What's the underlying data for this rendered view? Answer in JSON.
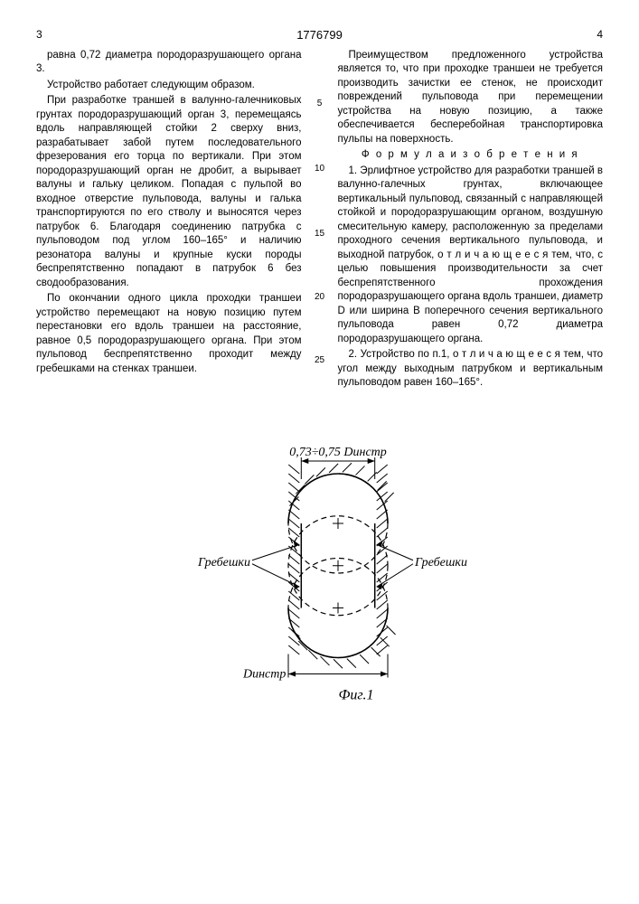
{
  "header": {
    "left_page": "3",
    "patent_number": "1776799",
    "right_page": "4"
  },
  "col_left": {
    "p1": "равна 0,72 диаметра породоразрушающего органа 3.",
    "p2": "Устройство работает следующим образом.",
    "p3": "При разработке траншей в валунно-галечниковых грунтах породоразрушающий орган 3, перемещаясь вдоль направляющей стойки 2 сверху вниз, разрабатывает забой путем последовательного фрезерования его торца по вертикали. При этом породоразрушающий орган не дробит, а вырывает валуны и гальку целиком. Попадая с пульпой во входное отверстие пульповода, валуны и галька транспортируются по его стволу и выносятся через патрубок 6. Благодаря соединению патрубка с пульповодом под углом 160–165° и наличию резонатора валуны и крупные куски породы беспрепятственно попадают в патрубок 6 без сводообразования.",
    "p4": "По окончании одного цикла проходки траншеи устройство перемещают на новую позицию путем перестановки его вдоль траншеи на расстояние, равное 0,5 породоразрушающего органа. При этом пульповод беспрепятственно проходит между гребешками на стенках траншеи."
  },
  "col_right": {
    "p1": "Преимуществом предложенного устройства является то, что при проходке траншеи не требуется производить зачистки ее стенок, не происходит повреждений пульповода при перемещении устройства на новую позицию, а также обеспечивается бесперебойная транспортировка пульпы на поверхность.",
    "heading": "Ф о р м у л а  и з о б р е т е н и я",
    "p2": "1. Эрлифтное устройство для разработки траншей в валунно-галечных грунтах, включающее вертикальный пульповод, связанный с направляющей стойкой и породоразрушающим органом, воздушную смесительную камеру, расположенную за пределами проходного сечения вертикального пульповода, и выходной патрубок, о т л и ч а ю щ е е с я тем, что, с целью повышения производительности за счет беспрепятственного прохождения породоразрушающего органа вдоль траншеи, диаметр D или ширина B поперечного сечения вертикального пульповода равен 0,72 диаметра породоразрушающего органа.",
    "p3": "2. Устройство по п.1, о т л и ч а ю щ е е с я тем, что угол между выходным патрубком и вертикальным пульповодом равен 160–165°."
  },
  "line_numbers": [
    "5",
    "10",
    "15",
    "20",
    "25"
  ],
  "figure": {
    "top_label": "0,73÷0,75 Dинстр",
    "left_label": "Гребешки",
    "right_label": "Гребешки",
    "bottom_label": "Dинстр",
    "caption": "Фиг.1",
    "circle_radius": 55,
    "circle_stroke": "#000",
    "dash_pattern": "6,4",
    "bg": "#ffffff",
    "hatch_color": "#000",
    "inner_width_ratio": 0.74
  }
}
